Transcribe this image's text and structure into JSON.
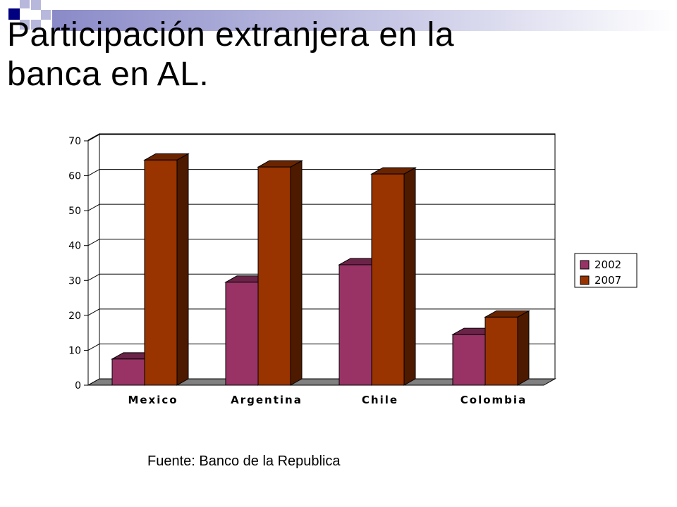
{
  "slide": {
    "title_line1": "Participación extranjera en la",
    "title_line2": "banca en AL.",
    "source": "Fuente: Banco de la Republica"
  },
  "colors": {
    "accent_dark": "#000080",
    "accent_light": "#a0a0d0",
    "series_2002": "#993366",
    "series_2007": "#993300"
  },
  "chart_data": {
    "type": "bar",
    "categories": [
      "Mexico",
      "Argentina",
      "Chile",
      "Colombia"
    ],
    "series": [
      {
        "name": "2002",
        "values": [
          7.5,
          29.5,
          34.5,
          14.5
        ]
      },
      {
        "name": "2007",
        "values": [
          64.5,
          62.5,
          60.5,
          19.5
        ]
      }
    ],
    "ylim": [
      0,
      70
    ],
    "yticks": [
      0,
      10,
      20,
      30,
      40,
      50,
      60,
      70
    ],
    "grid": true,
    "legend": "right",
    "three_d": true
  }
}
